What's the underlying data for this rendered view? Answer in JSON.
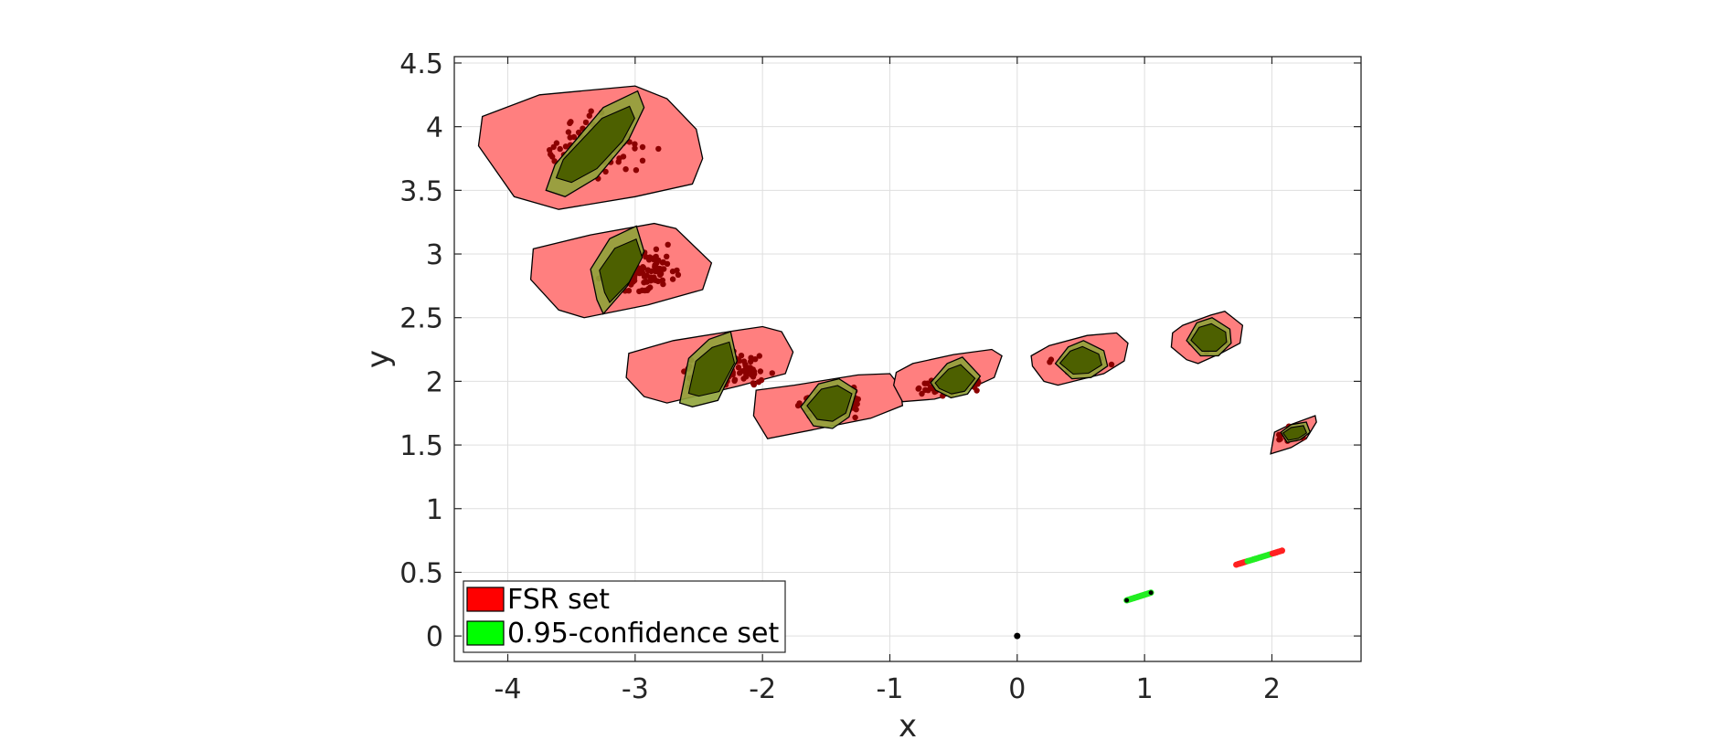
{
  "chart_data": {
    "type": "scatter",
    "title": "",
    "xlabel": "x",
    "ylabel": "y",
    "xlim": [
      -4.42,
      2.7
    ],
    "ylim": [
      -0.2,
      4.55
    ],
    "xticks": [
      -4,
      -3,
      -2,
      -1,
      0,
      1,
      2
    ],
    "yticks": [
      0,
      0.5,
      1,
      1.5,
      2,
      2.5,
      3,
      3.5,
      4,
      4.5
    ],
    "xtick_labels": [
      "-4",
      "-3",
      "-2",
      "-1",
      "0",
      "1",
      "2"
    ],
    "ytick_labels": [
      "0",
      "0.5",
      "1",
      "1.5",
      "2",
      "2.5",
      "3",
      "3.5",
      "4",
      "4.5"
    ],
    "grid": true,
    "legend_position": "bottom-left",
    "legend": [
      {
        "label": "FSR set",
        "color": "#ff0000"
      },
      {
        "label": "0.95-confidence set",
        "color": "#00ff00"
      }
    ],
    "colors": {
      "fsr_fill": "#ff7f7f",
      "confidence_fill": "#8fa33a",
      "overlap_fill": "#4d6000",
      "samples": "#8b0000",
      "origin": "#000000",
      "line_sample_red": "#ff2020",
      "line_sample_green": "#22ee22"
    },
    "origin": [
      0,
      0
    ],
    "sets": [
      {
        "center": [
          -3.3,
          3.85
        ],
        "spread": [
          0.38,
          0.22
        ],
        "fsr": [
          [
            -4.2,
            4.08
          ],
          [
            -3.75,
            4.25
          ],
          [
            -3.0,
            4.32
          ],
          [
            -2.75,
            4.22
          ],
          [
            -2.52,
            3.98
          ],
          [
            -2.47,
            3.75
          ],
          [
            -2.55,
            3.55
          ],
          [
            -3.0,
            3.45
          ],
          [
            -3.6,
            3.35
          ],
          [
            -3.95,
            3.45
          ],
          [
            -4.23,
            3.85
          ]
        ],
        "confidence": [
          [
            -3.7,
            3.5
          ],
          [
            -3.63,
            3.7
          ],
          [
            -3.25,
            4.15
          ],
          [
            -2.98,
            4.28
          ],
          [
            -2.93,
            4.15
          ],
          [
            -3.05,
            3.9
          ],
          [
            -3.3,
            3.6
          ],
          [
            -3.55,
            3.45
          ]
        ]
      },
      {
        "center": [
          -3.0,
          2.85
        ],
        "spread": [
          0.35,
          0.17
        ],
        "fsr": [
          [
            -3.8,
            3.04
          ],
          [
            -3.35,
            3.15
          ],
          [
            -2.85,
            3.24
          ],
          [
            -2.68,
            3.2
          ],
          [
            -2.4,
            2.93
          ],
          [
            -2.47,
            2.72
          ],
          [
            -2.9,
            2.6
          ],
          [
            -3.4,
            2.5
          ],
          [
            -3.6,
            2.56
          ],
          [
            -3.82,
            2.8
          ]
        ],
        "confidence": [
          [
            -3.35,
            2.88
          ],
          [
            -3.2,
            3.12
          ],
          [
            -2.99,
            3.22
          ],
          [
            -2.93,
            3.02
          ],
          [
            -3.06,
            2.75
          ],
          [
            -3.25,
            2.53
          ],
          [
            -3.3,
            2.64
          ]
        ]
      },
      {
        "center": [
          -2.3,
          2.1
        ],
        "spread": [
          0.32,
          0.13
        ],
        "fsr": [
          [
            -3.05,
            2.22
          ],
          [
            -2.7,
            2.32
          ],
          [
            -2.2,
            2.4
          ],
          [
            -2.0,
            2.43
          ],
          [
            -1.85,
            2.39
          ],
          [
            -1.76,
            2.23
          ],
          [
            -1.82,
            2.06
          ],
          [
            -2.2,
            1.96
          ],
          [
            -2.75,
            1.83
          ],
          [
            -2.93,
            1.88
          ],
          [
            -3.07,
            2.03
          ]
        ],
        "confidence": [
          [
            -2.65,
            1.83
          ],
          [
            -2.58,
            2.18
          ],
          [
            -2.42,
            2.33
          ],
          [
            -2.25,
            2.39
          ],
          [
            -2.2,
            2.16
          ],
          [
            -2.35,
            1.85
          ],
          [
            -2.55,
            1.8
          ]
        ]
      },
      {
        "center": [
          -1.45,
          1.83
        ],
        "spread": [
          0.26,
          0.09
        ],
        "fsr": [
          [
            -2.05,
            1.93
          ],
          [
            -1.75,
            1.97
          ],
          [
            -1.25,
            2.05
          ],
          [
            -1.0,
            2.06
          ],
          [
            -0.92,
            1.96
          ],
          [
            -0.9,
            1.81
          ],
          [
            -1.15,
            1.71
          ],
          [
            -1.6,
            1.62
          ],
          [
            -1.96,
            1.55
          ],
          [
            -2.07,
            1.73
          ]
        ],
        "confidence": [
          [
            -1.7,
            1.8
          ],
          [
            -1.56,
            1.98
          ],
          [
            -1.4,
            2.02
          ],
          [
            -1.26,
            1.93
          ],
          [
            -1.32,
            1.72
          ],
          [
            -1.45,
            1.63
          ],
          [
            -1.6,
            1.65
          ]
        ]
      },
      {
        "center": [
          -0.5,
          1.98
        ],
        "spread": [
          0.22,
          0.08
        ],
        "fsr": [
          [
            -0.95,
            2.07
          ],
          [
            -0.82,
            2.14
          ],
          [
            -0.5,
            2.21
          ],
          [
            -0.2,
            2.25
          ],
          [
            -0.12,
            2.2
          ],
          [
            -0.18,
            2.03
          ],
          [
            -0.4,
            1.93
          ],
          [
            -0.65,
            1.86
          ],
          [
            -0.9,
            1.84
          ],
          [
            -0.97,
            1.97
          ]
        ],
        "confidence": [
          [
            -0.68,
            1.99
          ],
          [
            -0.55,
            2.14
          ],
          [
            -0.43,
            2.19
          ],
          [
            -0.29,
            2.04
          ],
          [
            -0.39,
            1.9
          ],
          [
            -0.52,
            1.87
          ],
          [
            -0.64,
            1.93
          ]
        ]
      },
      {
        "center": [
          0.48,
          2.15
        ],
        "spread": [
          0.18,
          0.07
        ],
        "fsr": [
          [
            0.11,
            2.2
          ],
          [
            0.25,
            2.28
          ],
          [
            0.55,
            2.36
          ],
          [
            0.78,
            2.38
          ],
          [
            0.87,
            2.3
          ],
          [
            0.84,
            2.16
          ],
          [
            0.68,
            2.06
          ],
          [
            0.32,
            1.97
          ],
          [
            0.21,
            2.0
          ],
          [
            0.12,
            2.12
          ]
        ],
        "confidence": [
          [
            0.3,
            2.14
          ],
          [
            0.4,
            2.27
          ],
          [
            0.52,
            2.32
          ],
          [
            0.68,
            2.24
          ],
          [
            0.71,
            2.12
          ],
          [
            0.58,
            2.03
          ],
          [
            0.43,
            2.02
          ]
        ]
      },
      {
        "center": [
          1.5,
          2.33
        ],
        "spread": [
          0.13,
          0.07
        ],
        "fsr": [
          [
            1.22,
            2.38
          ],
          [
            1.3,
            2.44
          ],
          [
            1.52,
            2.52
          ],
          [
            1.63,
            2.55
          ],
          [
            1.77,
            2.44
          ],
          [
            1.75,
            2.3
          ],
          [
            1.6,
            2.22
          ],
          [
            1.42,
            2.14
          ],
          [
            1.33,
            2.17
          ],
          [
            1.21,
            2.27
          ]
        ],
        "confidence": [
          [
            1.33,
            2.32
          ],
          [
            1.41,
            2.46
          ],
          [
            1.53,
            2.5
          ],
          [
            1.67,
            2.41
          ],
          [
            1.68,
            2.3
          ],
          [
            1.58,
            2.2
          ],
          [
            1.44,
            2.2
          ]
        ]
      },
      {
        "center": [
          2.16,
          1.58
        ],
        "spread": [
          0.1,
          0.05
        ],
        "fsr": [
          [
            1.99,
            1.43
          ],
          [
            2.02,
            1.6
          ],
          [
            2.12,
            1.65
          ],
          [
            2.34,
            1.73
          ],
          [
            2.35,
            1.68
          ],
          [
            2.27,
            1.55
          ],
          [
            2.15,
            1.48
          ]
        ],
        "confidence": [
          [
            2.07,
            1.6
          ],
          [
            2.15,
            1.66
          ],
          [
            2.27,
            1.68
          ],
          [
            2.3,
            1.6
          ],
          [
            2.22,
            1.54
          ],
          [
            2.12,
            1.52
          ]
        ]
      }
    ],
    "line_samples": [
      {
        "from": [
          0.86,
          0.28
        ],
        "to": [
          1.05,
          0.34
        ],
        "colors": [
          "#22ee22"
        ],
        "endpoint_color": "#000000"
      },
      {
        "from": [
          1.72,
          0.56
        ],
        "to": [
          2.08,
          0.67
        ],
        "colors": [
          "#ff2020",
          "#22ee22"
        ],
        "endpoint_color": "#ff2020"
      }
    ]
  }
}
